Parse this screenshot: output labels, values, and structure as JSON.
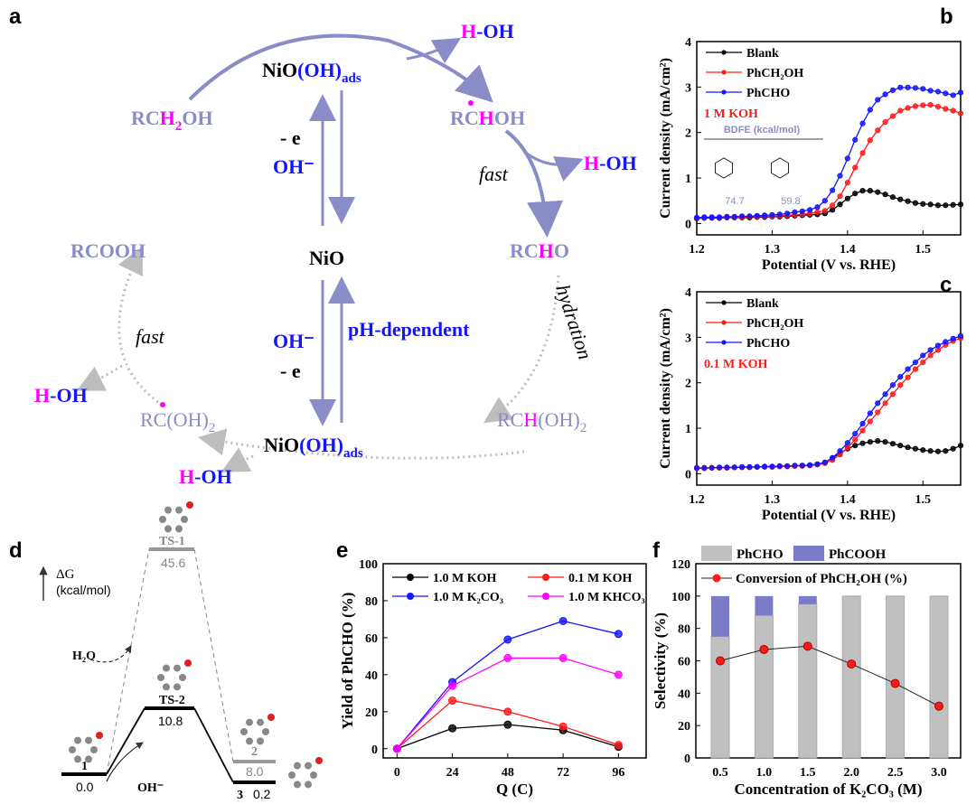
{
  "panel_labels": {
    "a": "a",
    "b": "b",
    "c": "c",
    "d": "d",
    "e": "e",
    "f": "f"
  },
  "colors": {
    "scheme": "#8a8cc8",
    "blue": "#1414ff",
    "magenta": "#ff00ff",
    "grey_arrow": "#bdbdbd",
    "red": "#ff1a1a",
    "black": "#000000",
    "bar_grey": "#c0c0c0",
    "bar_purple": "#7b7bc8"
  },
  "scheme_a": {
    "rch2oh": [
      "RC",
      "H",
      "2",
      "O",
      "H"
    ],
    "rchoh": [
      "RC",
      "H",
      "OH"
    ],
    "rcho": [
      "RC",
      "H",
      "O"
    ],
    "rchoh2": [
      "RC",
      "H",
      "(OH)",
      "2"
    ],
    "rcoh2": [
      "RC",
      "(OH)",
      "2"
    ],
    "rcooh": "RCOOH",
    "nio": "NiO",
    "nioohads_top": [
      "NiO",
      "(OH)",
      "ads"
    ],
    "nioohads_bottom": [
      "NiO",
      "(OH)",
      "ads"
    ],
    "h_oh": [
      "H",
      "-OH"
    ],
    "minus_e": "- e",
    "oh_minus": "OH⁻",
    "fast": "fast",
    "hydration": "hydration",
    "ph_dependent": "pH-dependent"
  },
  "panel_d": {
    "axis_label": "ΔG",
    "axis_unit": "(kcal/mol)",
    "levels": [
      {
        "name": "1",
        "value": "0.0"
      },
      {
        "name": "TS-2",
        "value": "10.8"
      },
      {
        "name": "TS-1",
        "value": "45.6"
      },
      {
        "name": "2",
        "value": "8.0"
      },
      {
        "name": "3",
        "value": "0.2"
      }
    ],
    "h2o": "H₂O",
    "oh": "OH⁻"
  },
  "chart_data": [
    {
      "id": "b",
      "type": "line",
      "xlabel": "Potential (V vs. RHE)",
      "ylabel": "Current density (mA/cm²)",
      "xlim": [
        1.2,
        1.55
      ],
      "ylim": [
        -0.25,
        4
      ],
      "xticks": [
        "1.2",
        "1.3",
        "1.4",
        "1.5"
      ],
      "yticks": [
        "0",
        "1",
        "2",
        "3",
        "4"
      ],
      "annotation": "1 M KOH",
      "inset": {
        "title": "BDFE (kcal/mol)",
        "values": [
          "74.7",
          "59.8"
        ]
      },
      "legend": "top-left",
      "x": [
        1.2,
        1.21,
        1.22,
        1.23,
        1.24,
        1.25,
        1.26,
        1.27,
        1.28,
        1.29,
        1.3,
        1.31,
        1.32,
        1.33,
        1.34,
        1.35,
        1.36,
        1.37,
        1.38,
        1.39,
        1.4,
        1.41,
        1.42,
        1.43,
        1.44,
        1.45,
        1.46,
        1.47,
        1.48,
        1.49,
        1.5,
        1.51,
        1.52,
        1.53,
        1.54,
        1.55
      ],
      "series": [
        {
          "name": "Blank",
          "color": "#000000",
          "values": [
            0.11,
            0.12,
            0.12,
            0.12,
            0.13,
            0.13,
            0.13,
            0.13,
            0.14,
            0.14,
            0.15,
            0.15,
            0.16,
            0.17,
            0.18,
            0.19,
            0.2,
            0.22,
            0.3,
            0.42,
            0.55,
            0.66,
            0.72,
            0.72,
            0.69,
            0.64,
            0.58,
            0.53,
            0.49,
            0.45,
            0.43,
            0.42,
            0.4,
            0.4,
            0.41,
            0.42
          ]
        },
        {
          "name": "PhCH₂OH",
          "color": "#ff1a1a",
          "values": [
            0.12,
            0.13,
            0.13,
            0.13,
            0.14,
            0.14,
            0.14,
            0.15,
            0.15,
            0.16,
            0.16,
            0.17,
            0.18,
            0.19,
            0.2,
            0.22,
            0.25,
            0.28,
            0.4,
            0.6,
            0.9,
            1.23,
            1.55,
            1.83,
            2.05,
            2.23,
            2.36,
            2.48,
            2.54,
            2.58,
            2.6,
            2.61,
            2.57,
            2.52,
            2.48,
            2.42
          ]
        },
        {
          "name": "PhCHO",
          "color": "#1414ff",
          "values": [
            0.13,
            0.14,
            0.14,
            0.14,
            0.15,
            0.15,
            0.16,
            0.16,
            0.17,
            0.18,
            0.19,
            0.2,
            0.22,
            0.25,
            0.27,
            0.3,
            0.36,
            0.5,
            0.73,
            1.05,
            1.43,
            1.84,
            2.2,
            2.5,
            2.72,
            2.84,
            2.93,
            2.99,
            2.99,
            2.98,
            2.96,
            2.92,
            2.9,
            2.86,
            2.82,
            2.88
          ]
        }
      ]
    },
    {
      "id": "c",
      "type": "line",
      "xlabel": "Potential (V vs. RHE)",
      "ylabel": "Current density (mA/cm²)",
      "xlim": [
        1.2,
        1.55
      ],
      "ylim": [
        -0.25,
        4
      ],
      "xticks": [
        "1.2",
        "1.3",
        "1.4",
        "1.5"
      ],
      "yticks": [
        "0",
        "1",
        "2",
        "3",
        "4"
      ],
      "annotation": "0.1 M KOH",
      "legend": "top-left",
      "x": [
        1.2,
        1.21,
        1.22,
        1.23,
        1.24,
        1.25,
        1.26,
        1.27,
        1.28,
        1.29,
        1.3,
        1.31,
        1.32,
        1.33,
        1.34,
        1.35,
        1.36,
        1.37,
        1.38,
        1.39,
        1.4,
        1.41,
        1.42,
        1.43,
        1.44,
        1.45,
        1.46,
        1.47,
        1.48,
        1.49,
        1.5,
        1.51,
        1.52,
        1.53,
        1.54,
        1.55
      ],
      "series": [
        {
          "name": "Blank",
          "color": "#000000",
          "values": [
            0.12,
            0.12,
            0.13,
            0.13,
            0.13,
            0.14,
            0.14,
            0.14,
            0.15,
            0.15,
            0.15,
            0.16,
            0.16,
            0.17,
            0.18,
            0.19,
            0.21,
            0.25,
            0.35,
            0.45,
            0.55,
            0.62,
            0.67,
            0.7,
            0.72,
            0.7,
            0.66,
            0.62,
            0.58,
            0.55,
            0.52,
            0.5,
            0.49,
            0.5,
            0.55,
            0.62
          ]
        },
        {
          "name": "PhCH₂OH",
          "color": "#ff1a1a",
          "values": [
            0.12,
            0.12,
            0.13,
            0.13,
            0.13,
            0.14,
            0.14,
            0.14,
            0.15,
            0.15,
            0.15,
            0.16,
            0.16,
            0.17,
            0.17,
            0.18,
            0.2,
            0.23,
            0.3,
            0.42,
            0.57,
            0.75,
            0.95,
            1.15,
            1.35,
            1.55,
            1.75,
            1.95,
            2.12,
            2.3,
            2.45,
            2.6,
            2.72,
            2.83,
            2.92,
            2.98
          ]
        },
        {
          "name": "PhCHO",
          "color": "#1414ff",
          "values": [
            0.13,
            0.13,
            0.13,
            0.14,
            0.14,
            0.14,
            0.15,
            0.15,
            0.15,
            0.16,
            0.16,
            0.17,
            0.17,
            0.18,
            0.18,
            0.19,
            0.21,
            0.25,
            0.35,
            0.5,
            0.68,
            0.88,
            1.1,
            1.33,
            1.55,
            1.75,
            1.95,
            2.13,
            2.3,
            2.45,
            2.6,
            2.72,
            2.82,
            2.9,
            2.97,
            3.03
          ]
        }
      ]
    },
    {
      "id": "e",
      "type": "line",
      "xlabel": "Q (C)",
      "ylabel": "Yield of PhCHO (%)",
      "xlim": [
        -6,
        108
      ],
      "ylim": [
        -5,
        100
      ],
      "xticks": [
        "0",
        "24",
        "48",
        "72",
        "96"
      ],
      "yticks": [
        "0",
        "20",
        "40",
        "60",
        "80",
        "100"
      ],
      "legend": "top",
      "x": [
        0,
        24,
        48,
        72,
        96
      ],
      "series": [
        {
          "name": "1.0 M KOH",
          "color": "#000000",
          "values": [
            0,
            11,
            13,
            10,
            1
          ]
        },
        {
          "name": "0.1 M KOH",
          "color": "#ff1a1a",
          "values": [
            0,
            26,
            20,
            12,
            2
          ]
        },
        {
          "name": "1.0 M K₂CO₃",
          "color": "#1414ff",
          "values": [
            0,
            36,
            59,
            69,
            62
          ]
        },
        {
          "name": "1.0 M KHCO₃",
          "color": "#ff00ff",
          "values": [
            0,
            34,
            49,
            49,
            40
          ]
        }
      ]
    },
    {
      "id": "f",
      "type": "bar",
      "xlabel": "Concentration of K₂CO₃ (M)",
      "ylabel": "Selectivity (%)",
      "ylim": [
        0,
        120
      ],
      "categories": [
        "0.5",
        "1.0",
        "1.5",
        "2.0",
        "2.5",
        "3.0"
      ],
      "yticks": [
        "0",
        "20",
        "40",
        "60",
        "80",
        "100",
        "120"
      ],
      "legend": "top",
      "series": [
        {
          "name": "PhCHO",
          "kind": "stacked-bar",
          "color": "#c0c0c0",
          "values": [
            75,
            88,
            95,
            100,
            100,
            100
          ]
        },
        {
          "name": "PhCOOH",
          "kind": "stacked-bar",
          "color": "#7b7bc8",
          "values": [
            25,
            12,
            5,
            0,
            0,
            0
          ]
        },
        {
          "name": "Conversion of PhCH₂OH (%)",
          "kind": "line",
          "color": "#ff1a1a",
          "values": [
            60,
            67,
            69,
            58,
            46,
            32
          ]
        }
      ]
    }
  ]
}
